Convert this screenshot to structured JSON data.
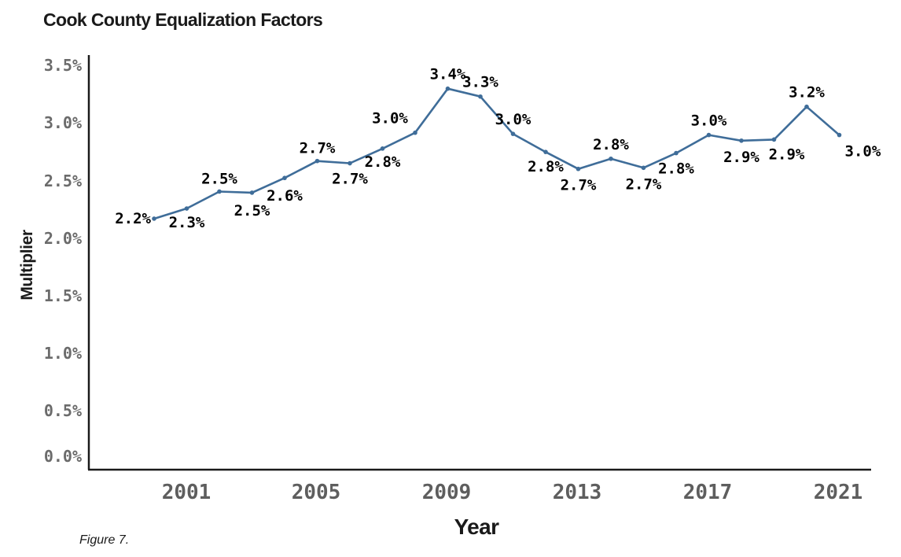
{
  "chart_data": {
    "type": "line",
    "title": "Cook County Equalization Factors",
    "xlabel": "Year",
    "ylabel": "Multiplier",
    "caption": "Figure 7.",
    "x": [
      2000,
      2001,
      2002,
      2003,
      2004,
      2005,
      2006,
      2007,
      2008,
      2009,
      2010,
      2011,
      2012,
      2013,
      2014,
      2015,
      2016,
      2017,
      2018,
      2019,
      2020,
      2021
    ],
    "series": [
      {
        "values": [
          2.22,
          2.31,
          2.46,
          2.45,
          2.58,
          2.73,
          2.71,
          2.84,
          2.98,
          3.37,
          3.3,
          2.97,
          2.81,
          2.66,
          2.75,
          2.67,
          2.8,
          2.96,
          2.91,
          2.92,
          3.21,
          2.96
        ],
        "labels": [
          "2.2%",
          "2.3%",
          "2.5%",
          "2.5%",
          "2.6%",
          "2.7%",
          "2.7%",
          "2.8%",
          "3.0%",
          "3.4%",
          "3.3%",
          "3.0%",
          "2.8%",
          "2.7%",
          "2.8%",
          "2.7%",
          "2.8%",
          "3.0%",
          "2.9%",
          "2.9%",
          "3.2%",
          "3.0%"
        ],
        "color": "#3f6d99"
      }
    ],
    "yticks": [
      "0.0%",
      "0.5%",
      "1.0%",
      "1.5%",
      "2.0%",
      "2.5%",
      "3.0%",
      "3.5%"
    ],
    "xticks": [
      "2001",
      "2005",
      "2009",
      "2013",
      "2017",
      "2021"
    ],
    "ylim": [
      0,
      3.5
    ],
    "xlim": [
      1999,
      2021
    ],
    "grid": false,
    "legend": "none"
  }
}
